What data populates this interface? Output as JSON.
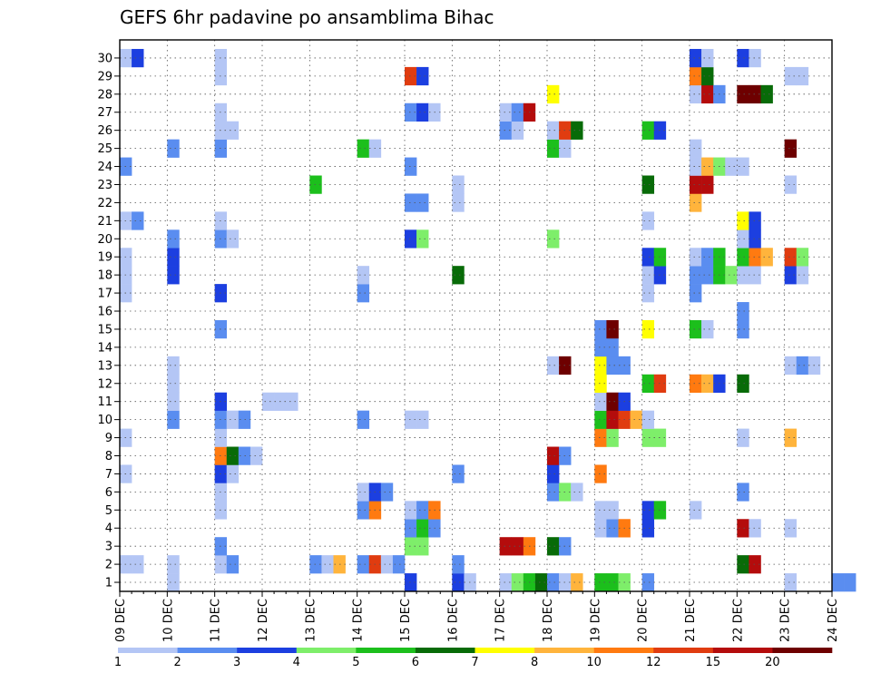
{
  "chart_data": {
    "type": "heatmap",
    "title": "GEFS 6hr padavine po ansamblima Bihac",
    "x_labels": [
      "09 DEC",
      "10 DEC",
      "11 DEC",
      "12 DEC",
      "13 DEC",
      "14 DEC",
      "15 DEC",
      "16 DEC",
      "17 DEC",
      "18 DEC",
      "19 DEC",
      "20 DEC",
      "21 DEC",
      "22 DEC",
      "23 DEC",
      "24 DEC"
    ],
    "y_labels": [
      "1",
      "2",
      "3",
      "4",
      "5",
      "6",
      "7",
      "8",
      "9",
      "10",
      "11",
      "12",
      "13",
      "14",
      "15",
      "16",
      "17",
      "18",
      "19",
      "20",
      "21",
      "22",
      "23",
      "24",
      "25",
      "26",
      "27",
      "28",
      "29",
      "30"
    ],
    "ylim": [
      1,
      30
    ],
    "steps_per_day": 4,
    "grid": true,
    "legend_placement": "bottom",
    "legend_labels": [
      "1",
      "2",
      "3",
      "4",
      "5",
      "6",
      "7",
      "8",
      "10",
      "12",
      "15",
      "20"
    ],
    "legend_colors": [
      "#b4c6f5",
      "#5a8df0",
      "#1c3fe0",
      "#7eee6a",
      "#1cbf1c",
      "#086b08",
      "#ffff00",
      "#ffb43c",
      "#ff7a10",
      "#e03c10",
      "#b40c0c",
      "#6e0000"
    ],
    "cells": [
      [
        1,
        1,
        0
      ],
      [
        1,
        6,
        2
      ],
      [
        1,
        7,
        2
      ],
      [
        1,
        7,
        0
      ],
      [
        1,
        8,
        0
      ],
      [
        1,
        8,
        3
      ],
      [
        1,
        8,
        4
      ],
      [
        1,
        8,
        5
      ],
      [
        1,
        9,
        1
      ],
      [
        1,
        9,
        0
      ],
      [
        1,
        9,
        7
      ],
      [
        1,
        10,
        4
      ],
      [
        1,
        10,
        4
      ],
      [
        1,
        10,
        3
      ],
      [
        1,
        11,
        1
      ],
      [
        1,
        14,
        0
      ],
      [
        1,
        15,
        1
      ],
      [
        1,
        15,
        1
      ],
      [
        2,
        0,
        0
      ],
      [
        2,
        0,
        0
      ],
      [
        2,
        1,
        0
      ],
      [
        2,
        2,
        0
      ],
      [
        2,
        2,
        1
      ],
      [
        2,
        4,
        1
      ],
      [
        2,
        4,
        0
      ],
      [
        2,
        4,
        7
      ],
      [
        2,
        5,
        1
      ],
      [
        2,
        5,
        9
      ],
      [
        2,
        5,
        0
      ],
      [
        2,
        5,
        1
      ],
      [
        2,
        7,
        1
      ],
      [
        2,
        13,
        5
      ],
      [
        2,
        13,
        10
      ],
      [
        3,
        2,
        1
      ],
      [
        3,
        6,
        3
      ],
      [
        3,
        6,
        3
      ],
      [
        3,
        8,
        10
      ],
      [
        3,
        8,
        10
      ],
      [
        3,
        8,
        8
      ],
      [
        3,
        9,
        5
      ],
      [
        3,
        9,
        1
      ],
      [
        4,
        6,
        1
      ],
      [
        4,
        6,
        4
      ],
      [
        4,
        6,
        1
      ],
      [
        4,
        10,
        0
      ],
      [
        4,
        10,
        1
      ],
      [
        4,
        10,
        8
      ],
      [
        4,
        11,
        2
      ],
      [
        4,
        13,
        10
      ],
      [
        4,
        13,
        0
      ],
      [
        4,
        14,
        0
      ],
      [
        5,
        2,
        0
      ],
      [
        5,
        5,
        1
      ],
      [
        5,
        5,
        8
      ],
      [
        5,
        6,
        0
      ],
      [
        5,
        6,
        1
      ],
      [
        5,
        6,
        8
      ],
      [
        5,
        10,
        0
      ],
      [
        5,
        10,
        0
      ],
      [
        5,
        11,
        2
      ],
      [
        5,
        11,
        4
      ],
      [
        5,
        12,
        0
      ],
      [
        6,
        2,
        0
      ],
      [
        6,
        5,
        0
      ],
      [
        6,
        5,
        2
      ],
      [
        6,
        5,
        1
      ],
      [
        6,
        9,
        1
      ],
      [
        6,
        9,
        3
      ],
      [
        6,
        9,
        0
      ],
      [
        6,
        13,
        1
      ],
      [
        7,
        0,
        0
      ],
      [
        7,
        2,
        2
      ],
      [
        7,
        2,
        0
      ],
      [
        7,
        7,
        1
      ],
      [
        7,
        9,
        2
      ],
      [
        7,
        10,
        8
      ],
      [
        8,
        2,
        8
      ],
      [
        8,
        2,
        5
      ],
      [
        8,
        2,
        1
      ],
      [
        8,
        2,
        0
      ],
      [
        8,
        9,
        10
      ],
      [
        8,
        9,
        1
      ],
      [
        9,
        0,
        0
      ],
      [
        9,
        2,
        0
      ],
      [
        9,
        10,
        8
      ],
      [
        9,
        10,
        3
      ],
      [
        9,
        11,
        3
      ],
      [
        9,
        11,
        3
      ],
      [
        9,
        13,
        0
      ],
      [
        9,
        14,
        7
      ],
      [
        10,
        1,
        1
      ],
      [
        10,
        2,
        1
      ],
      [
        10,
        2,
        0
      ],
      [
        10,
        2,
        1
      ],
      [
        10,
        5,
        1
      ],
      [
        10,
        6,
        0
      ],
      [
        10,
        6,
        0
      ],
      [
        10,
        10,
        4
      ],
      [
        10,
        10,
        10
      ],
      [
        10,
        10,
        9
      ],
      [
        10,
        10,
        7
      ],
      [
        10,
        10,
        0
      ],
      [
        11,
        1,
        0
      ],
      [
        11,
        2,
        2
      ],
      [
        11,
        3,
        0
      ],
      [
        11,
        3,
        0
      ],
      [
        11,
        3,
        0
      ],
      [
        11,
        10,
        0
      ],
      [
        11,
        10,
        11
      ],
      [
        11,
        10,
        2
      ],
      [
        12,
        1,
        0
      ],
      [
        12,
        10,
        6
      ],
      [
        12,
        11,
        4
      ],
      [
        12,
        11,
        9
      ],
      [
        12,
        12,
        8
      ],
      [
        12,
        12,
        7
      ],
      [
        12,
        12,
        2
      ],
      [
        12,
        13,
        5
      ],
      [
        13,
        1,
        0
      ],
      [
        13,
        9,
        0
      ],
      [
        13,
        9,
        11
      ],
      [
        13,
        10,
        6
      ],
      [
        13,
        10,
        1
      ],
      [
        13,
        10,
        1
      ],
      [
        13,
        14,
        0
      ],
      [
        13,
        14,
        1
      ],
      [
        13,
        14,
        0
      ],
      [
        14,
        10,
        1
      ],
      [
        14,
        10,
        1
      ],
      [
        15,
        2,
        1
      ],
      [
        15,
        10,
        1
      ],
      [
        15,
        10,
        11
      ],
      [
        15,
        11,
        6
      ],
      [
        15,
        12,
        4
      ],
      [
        15,
        12,
        0
      ],
      [
        15,
        13,
        1
      ],
      [
        16,
        13,
        1
      ],
      [
        17,
        0,
        0
      ],
      [
        17,
        2,
        2
      ],
      [
        17,
        5,
        1
      ],
      [
        17,
        11,
        0
      ],
      [
        17,
        12,
        1
      ],
      [
        18,
        0,
        0
      ],
      [
        18,
        1,
        2
      ],
      [
        18,
        5,
        0
      ],
      [
        18,
        7,
        5
      ],
      [
        18,
        11,
        0
      ],
      [
        18,
        11,
        2
      ],
      [
        18,
        12,
        1
      ],
      [
        18,
        12,
        1
      ],
      [
        18,
        12,
        4
      ],
      [
        18,
        12,
        3
      ],
      [
        18,
        13,
        0
      ],
      [
        18,
        13,
        0
      ],
      [
        18,
        14,
        2
      ],
      [
        18,
        14,
        0
      ],
      [
        19,
        0,
        0
      ],
      [
        19,
        1,
        2
      ],
      [
        19,
        11,
        2
      ],
      [
        19,
        11,
        4
      ],
      [
        19,
        12,
        0
      ],
      [
        19,
        12,
        1
      ],
      [
        19,
        12,
        4
      ],
      [
        19,
        13,
        4
      ],
      [
        19,
        13,
        8
      ],
      [
        19,
        13,
        7
      ],
      [
        19,
        14,
        9
      ],
      [
        19,
        14,
        3
      ],
      [
        20,
        1,
        1
      ],
      [
        20,
        2,
        1
      ],
      [
        20,
        2,
        0
      ],
      [
        20,
        6,
        2
      ],
      [
        20,
        6,
        3
      ],
      [
        20,
        9,
        3
      ],
      [
        20,
        13,
        0
      ],
      [
        20,
        13,
        2
      ],
      [
        21,
        0,
        0
      ],
      [
        21,
        0,
        1
      ],
      [
        21,
        2,
        0
      ],
      [
        21,
        11,
        0
      ],
      [
        21,
        13,
        6
      ],
      [
        21,
        13,
        2
      ],
      [
        22,
        6,
        1
      ],
      [
        22,
        6,
        1
      ],
      [
        22,
        7,
        0
      ],
      [
        22,
        12,
        7
      ],
      [
        23,
        4,
        4
      ],
      [
        23,
        7,
        0
      ],
      [
        23,
        11,
        5
      ],
      [
        23,
        12,
        10
      ],
      [
        23,
        12,
        10
      ],
      [
        23,
        14,
        0
      ],
      [
        24,
        0,
        1
      ],
      [
        24,
        6,
        1
      ],
      [
        24,
        12,
        0
      ],
      [
        24,
        12,
        7
      ],
      [
        24,
        12,
        3
      ],
      [
        24,
        12,
        0
      ],
      [
        24,
        13,
        0
      ],
      [
        25,
        1,
        1
      ],
      [
        25,
        2,
        1
      ],
      [
        25,
        5,
        4
      ],
      [
        25,
        5,
        0
      ],
      [
        25,
        9,
        4
      ],
      [
        25,
        9,
        0
      ],
      [
        25,
        12,
        0
      ],
      [
        25,
        14,
        11
      ],
      [
        26,
        2,
        0
      ],
      [
        26,
        2,
        0
      ],
      [
        26,
        8,
        1
      ],
      [
        26,
        8,
        0
      ],
      [
        26,
        9,
        0
      ],
      [
        26,
        9,
        9
      ],
      [
        26,
        9,
        5
      ],
      [
        26,
        11,
        4
      ],
      [
        26,
        11,
        2
      ],
      [
        27,
        2,
        0
      ],
      [
        27,
        6,
        1
      ],
      [
        27,
        6,
        2
      ],
      [
        27,
        6,
        0
      ],
      [
        27,
        8,
        0
      ],
      [
        27,
        8,
        1
      ],
      [
        27,
        8,
        10
      ],
      [
        28,
        9,
        6
      ],
      [
        28,
        12,
        0
      ],
      [
        28,
        12,
        10
      ],
      [
        28,
        12,
        1
      ],
      [
        28,
        13,
        11
      ],
      [
        28,
        13,
        11
      ],
      [
        28,
        13,
        5
      ],
      [
        29,
        2,
        0
      ],
      [
        29,
        6,
        9
      ],
      [
        29,
        6,
        2
      ],
      [
        29,
        12,
        8
      ],
      [
        29,
        12,
        5
      ],
      [
        29,
        14,
        0
      ],
      [
        29,
        14,
        0
      ],
      [
        30,
        0,
        0
      ],
      [
        30,
        0,
        2
      ],
      [
        30,
        2,
        0
      ],
      [
        30,
        12,
        2
      ],
      [
        30,
        12,
        0
      ],
      [
        30,
        13,
        2
      ],
      [
        30,
        13,
        0
      ]
    ]
  }
}
